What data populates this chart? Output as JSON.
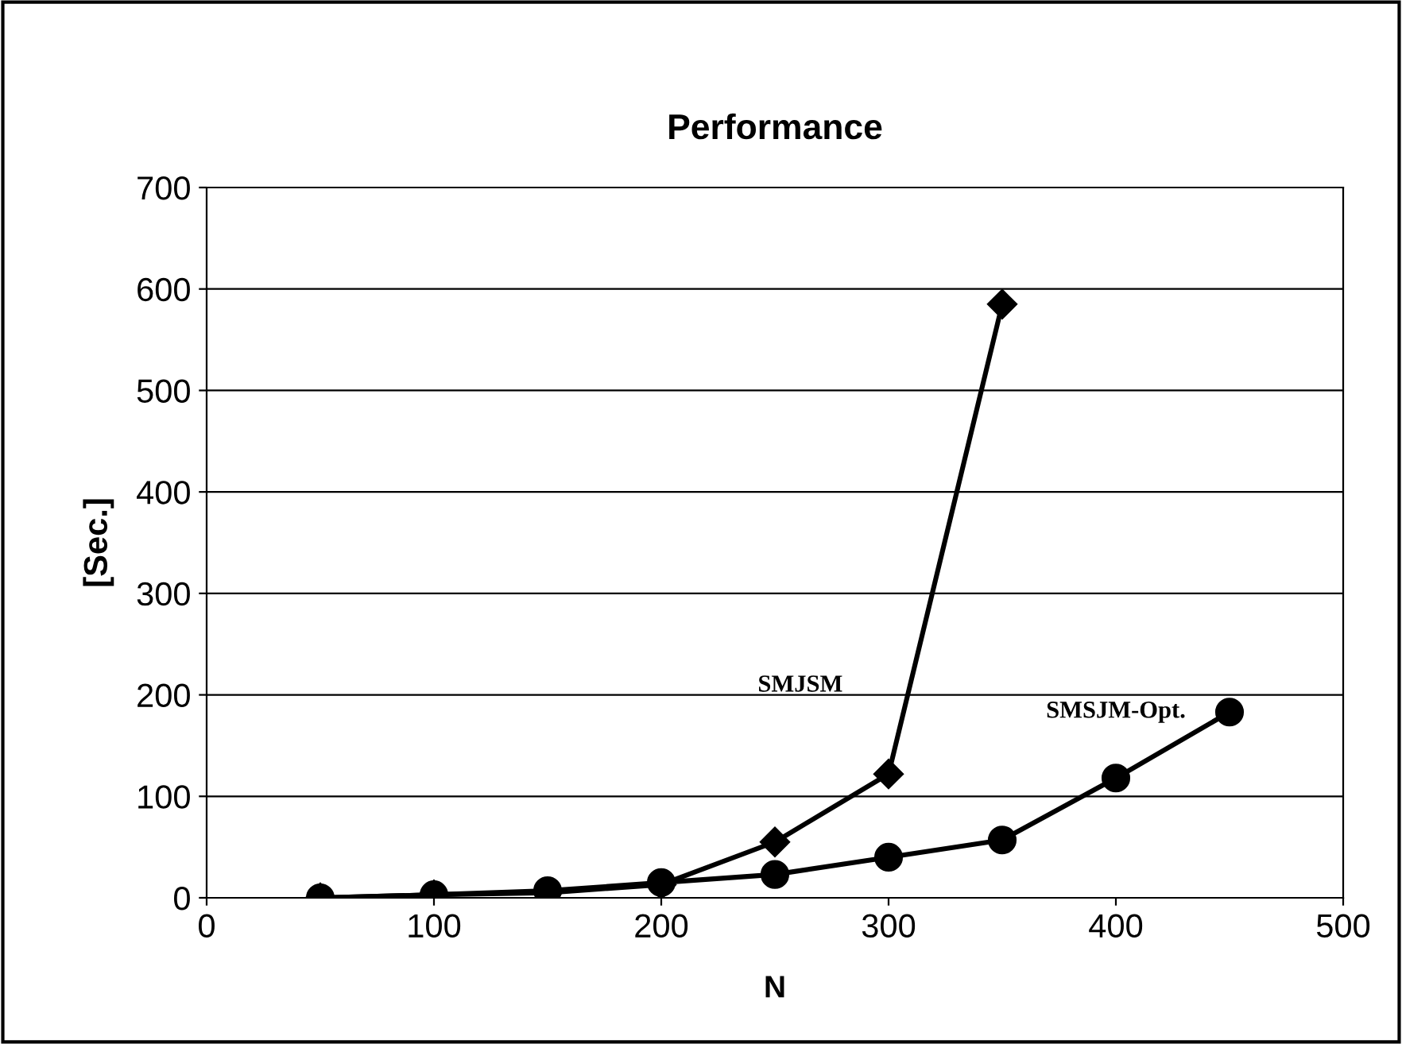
{
  "chart_data": {
    "type": "line",
    "title": "Performance",
    "xlabel": "N",
    "ylabel": "[Sec.]",
    "xlim": [
      0,
      500
    ],
    "xticks": [
      0,
      100,
      200,
      300,
      400,
      500
    ],
    "ylim": [
      0,
      700
    ],
    "yticks": [
      0,
      100,
      200,
      300,
      400,
      500,
      600,
      700
    ],
    "grid": "y",
    "legend": false,
    "series": [
      {
        "name": "SMJSM",
        "color": "#000000",
        "marker": "diamond",
        "x": [
          50,
          100,
          150,
          200,
          250,
          300,
          350
        ],
        "values": [
          0,
          3,
          5,
          13,
          55,
          122,
          585
        ]
      },
      {
        "name": "SMSJM-Opt.",
        "color": "#000000",
        "marker": "circle",
        "x": [
          50,
          100,
          150,
          200,
          250,
          300,
          350,
          400,
          450
        ],
        "values": [
          0,
          3,
          7,
          15,
          23,
          40,
          57,
          118,
          183
        ]
      }
    ]
  }
}
